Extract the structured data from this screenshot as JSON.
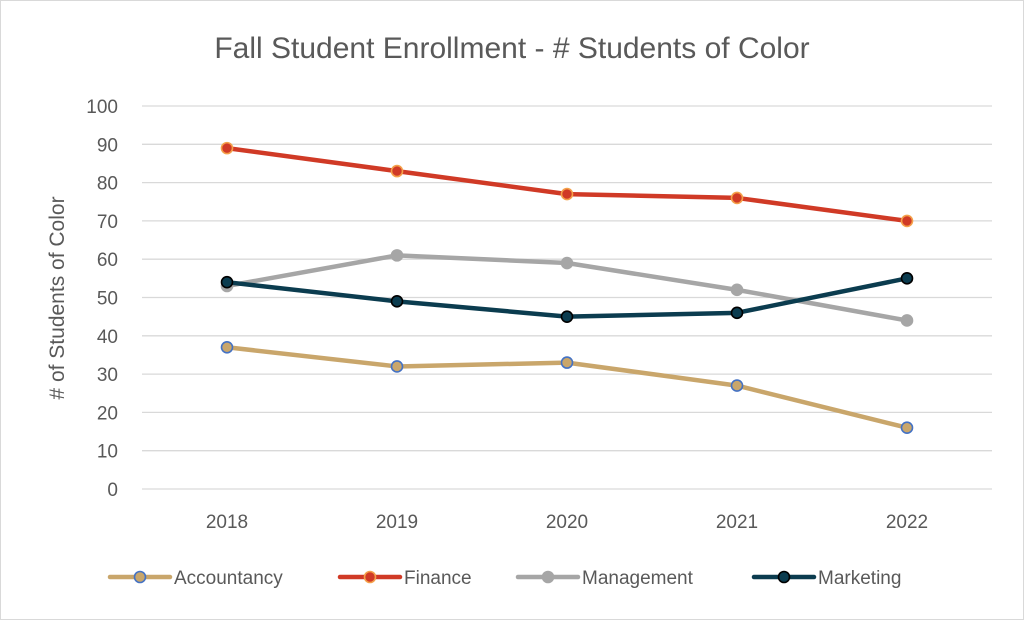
{
  "chart_data": {
    "type": "line",
    "title": "Fall Student Enrollment - # Students of Color",
    "xlabel": "",
    "ylabel": "# of Students of Color",
    "categories": [
      "2018",
      "2019",
      "2020",
      "2021",
      "2022"
    ],
    "ylim": [
      0,
      100
    ],
    "yticks": [
      "0",
      "10",
      "20",
      "30",
      "40",
      "50",
      "60",
      "70",
      "80",
      "90",
      "100"
    ],
    "grid": true,
    "legend_position": "bottom",
    "series": [
      {
        "name": "Accountancy",
        "values": [
          37,
          32,
          33,
          27,
          16
        ],
        "line_color": "#c9a66b",
        "marker_fill": "#c9a66b",
        "marker_edge": "#4472c4"
      },
      {
        "name": "Finance",
        "values": [
          89,
          83,
          77,
          76,
          70
        ],
        "line_color": "#d03a26",
        "marker_fill": "#d03a26",
        "marker_edge": "#f4a04a"
      },
      {
        "name": "Management",
        "values": [
          53,
          61,
          59,
          52,
          44
        ],
        "line_color": "#a6a6a6",
        "marker_fill": "#a6a6a6",
        "marker_edge": "#a6a6a6"
      },
      {
        "name": "Marketing",
        "values": [
          54,
          49,
          45,
          46,
          55
        ],
        "line_color": "#0b3c4f",
        "marker_fill": "#0b3c4f",
        "marker_edge": "#000000"
      }
    ]
  }
}
